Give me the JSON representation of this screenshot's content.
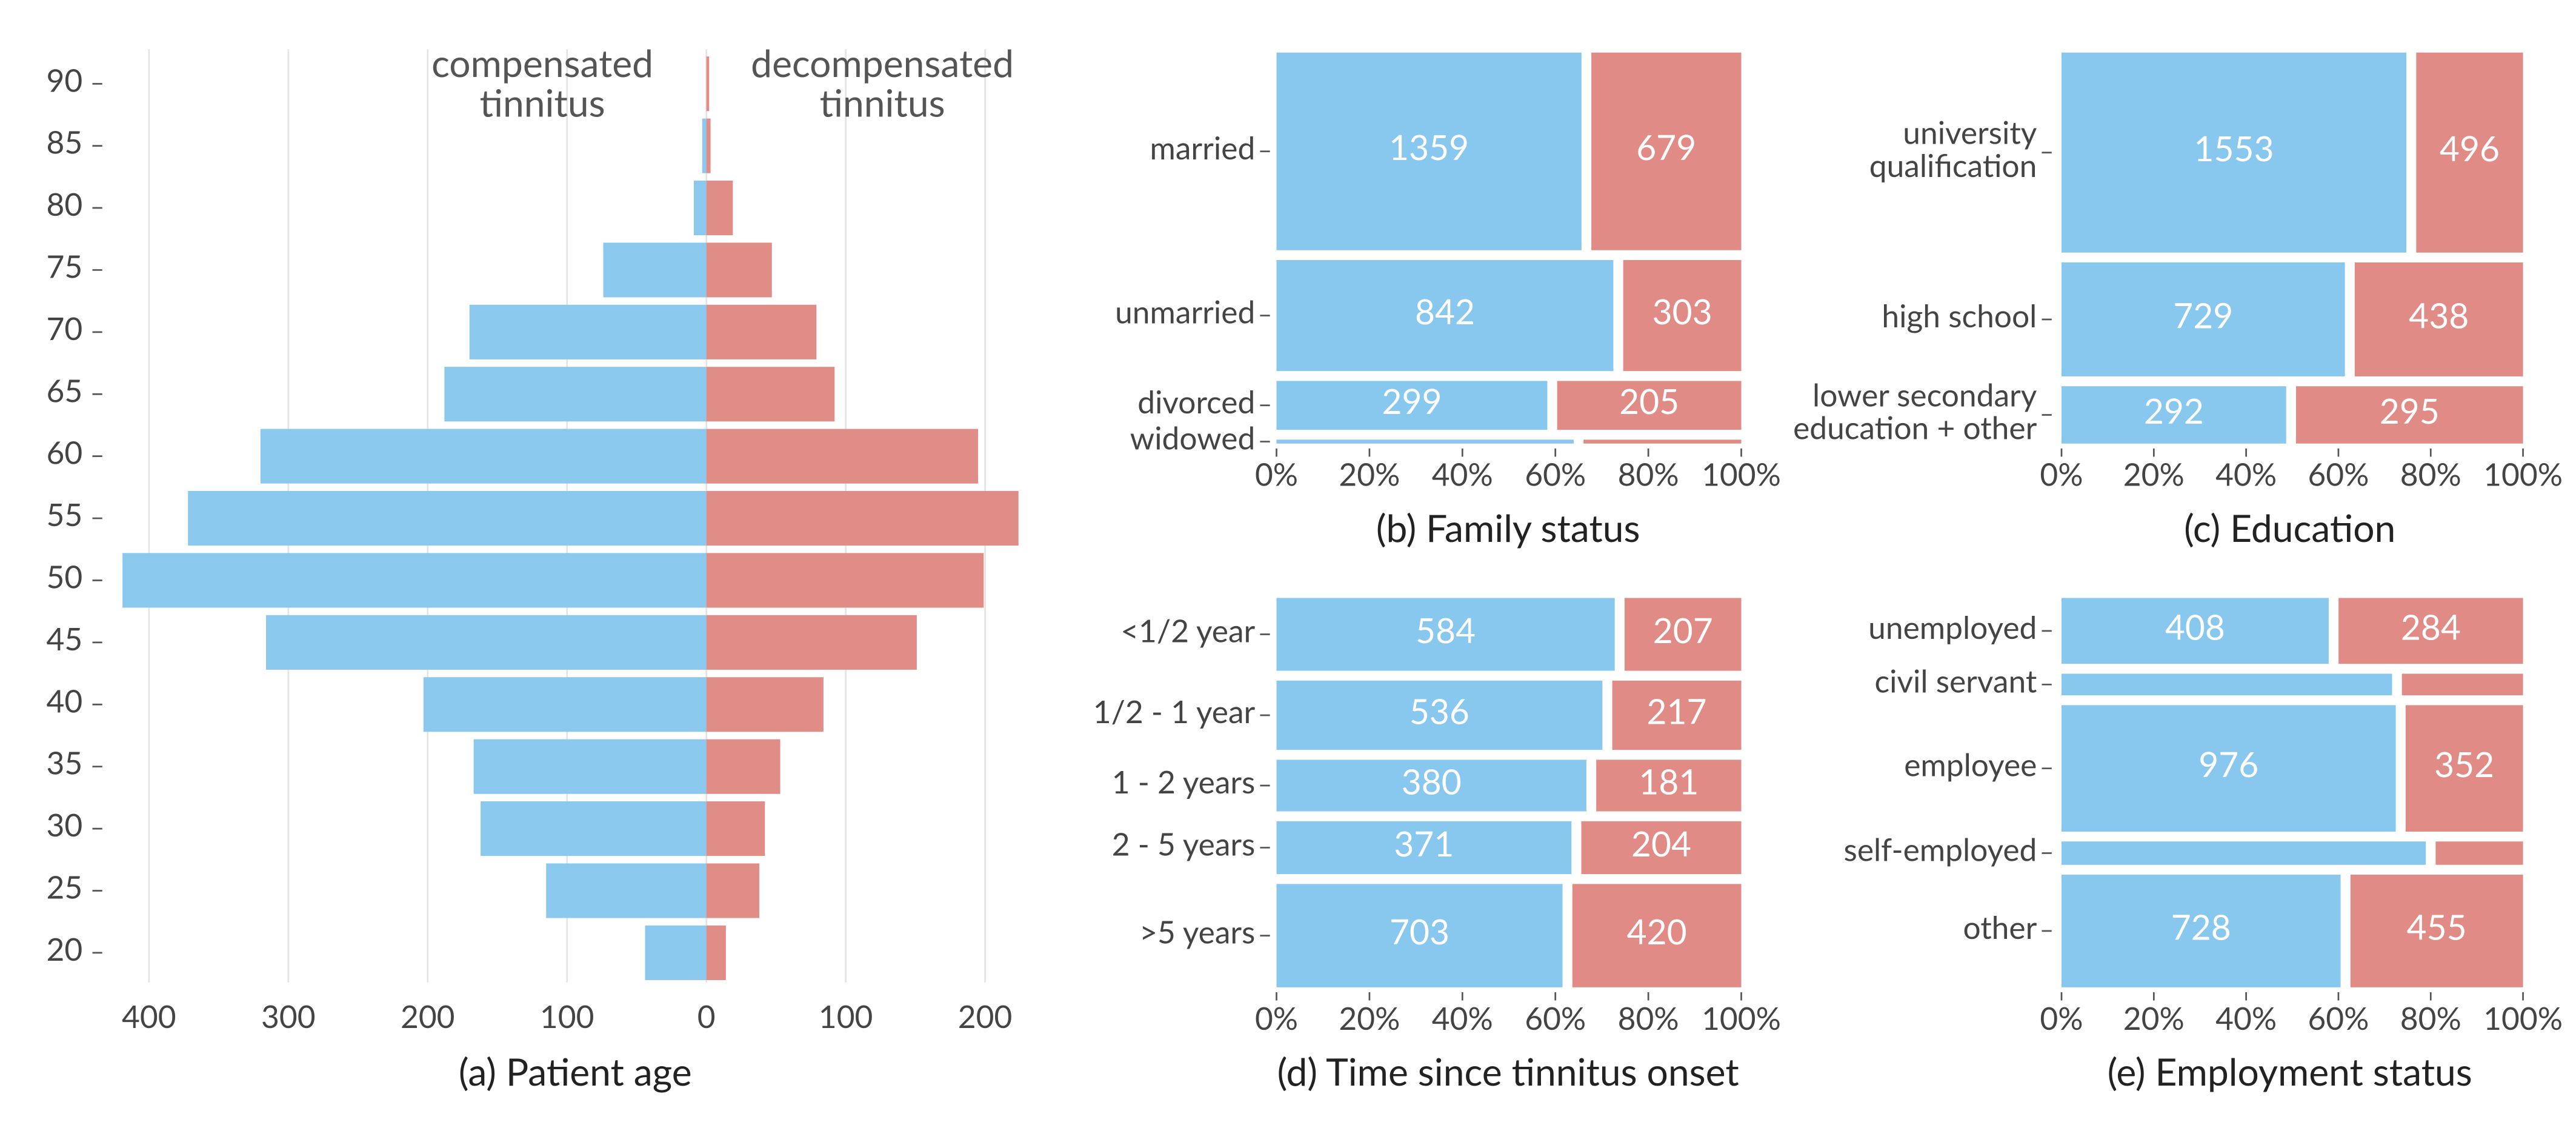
{
  "chart_data": [
    {
      "type": "pyramid",
      "title": "(a) Patient age",
      "categories": [
        "20",
        "25",
        "30",
        "35",
        "40",
        "45",
        "50",
        "55",
        "60",
        "65",
        "70",
        "75",
        "80",
        "85",
        "90"
      ],
      "series": [
        {
          "name": "compensated\ntinnitus",
          "color": "#88c7ee",
          "values": [
            44,
            115,
            162,
            167,
            203,
            316,
            419,
            372,
            320,
            188,
            170,
            74,
            9,
            3,
            0
          ]
        },
        {
          "name": "decompensated\ntinnitus",
          "color": "#e08b85",
          "values": [
            14,
            38,
            42,
            53,
            84,
            151,
            199,
            224,
            195,
            92,
            79,
            47,
            19,
            3,
            2
          ]
        }
      ],
      "xlim": [
        -430,
        230
      ],
      "xticks": [
        {
          "value": -400,
          "label": "400"
        },
        {
          "value": -300,
          "label": "300"
        },
        {
          "value": -200,
          "label": "200"
        },
        {
          "value": -100,
          "label": "100"
        },
        0,
        100,
        200
      ],
      "grid": true
    },
    {
      "type": "mosaic",
      "title": "(b) Family status",
      "categories": [
        "married",
        "unmarried",
        "divorced",
        "widowed"
      ],
      "series": [
        {
          "color": "#88c7ee",
          "values": [
            1359,
            842,
            299,
            26
          ]
        },
        {
          "color": "#e08b85",
          "values": [
            679,
            303,
            205,
            14
          ]
        }
      ],
      "xlim": [
        0,
        100
      ],
      "xticks": [
        {
          "value": 0,
          "label": "0%"
        },
        {
          "value": 20,
          "label": "20%"
        },
        {
          "value": 40,
          "label": "40%"
        },
        {
          "value": 60,
          "label": "60%"
        },
        {
          "value": 80,
          "label": "80%"
        },
        {
          "value": 100,
          "label": "100%"
        }
      ]
    },
    {
      "type": "mosaic",
      "title": "(c) Education",
      "categories": [
        "university\nqualification",
        "high school",
        "lower secondary\neducation + other"
      ],
      "series": [
        {
          "color": "#88c7ee",
          "values": [
            1553,
            729,
            292
          ]
        },
        {
          "color": "#e08b85",
          "values": [
            496,
            438,
            295
          ]
        }
      ],
      "xlim": [
        0,
        100
      ],
      "xticks": [
        {
          "value": 0,
          "label": "0%"
        },
        {
          "value": 20,
          "label": "20%"
        },
        {
          "value": 40,
          "label": "40%"
        },
        {
          "value": 60,
          "label": "60%"
        },
        {
          "value": 80,
          "label": "80%"
        },
        {
          "value": 100,
          "label": "100%"
        }
      ]
    },
    {
      "type": "mosaic",
      "title": "(d) Time since tinnitus onset",
      "categories": [
        "<1/2 year",
        "1/2 - 1 year",
        "1 - 2 years",
        "2 - 5 years",
        ">5 years"
      ],
      "series": [
        {
          "color": "#88c7ee",
          "values": [
            584,
            536,
            380,
            371,
            703
          ]
        },
        {
          "color": "#e08b85",
          "values": [
            207,
            217,
            181,
            204,
            420
          ]
        }
      ],
      "xlim": [
        0,
        100
      ],
      "xticks": [
        {
          "value": 0,
          "label": "0%"
        },
        {
          "value": 20,
          "label": "20%"
        },
        {
          "value": 40,
          "label": "40%"
        },
        {
          "value": 60,
          "label": "60%"
        },
        {
          "value": 80,
          "label": "80%"
        },
        {
          "value": 100,
          "label": "100%"
        }
      ]
    },
    {
      "type": "mosaic",
      "title": "(e) Employment status",
      "categories": [
        "unemployed",
        "civil servant",
        "employee",
        "self-employed",
        "other"
      ],
      "series": [
        {
          "color": "#88c7ee",
          "values": [
            408,
            165,
            976,
            196,
            728
          ]
        },
        {
          "color": "#e08b85",
          "values": [
            284,
            62,
            352,
            49,
            455
          ]
        }
      ],
      "xlim": [
        0,
        100
      ],
      "xticks": [
        {
          "value": 0,
          "label": "0%"
        },
        {
          "value": 20,
          "label": "20%"
        },
        {
          "value": 40,
          "label": "40%"
        },
        {
          "value": 60,
          "label": "60%"
        },
        {
          "value": 80,
          "label": "80%"
        },
        {
          "value": 100,
          "label": "100%"
        }
      ]
    }
  ]
}
